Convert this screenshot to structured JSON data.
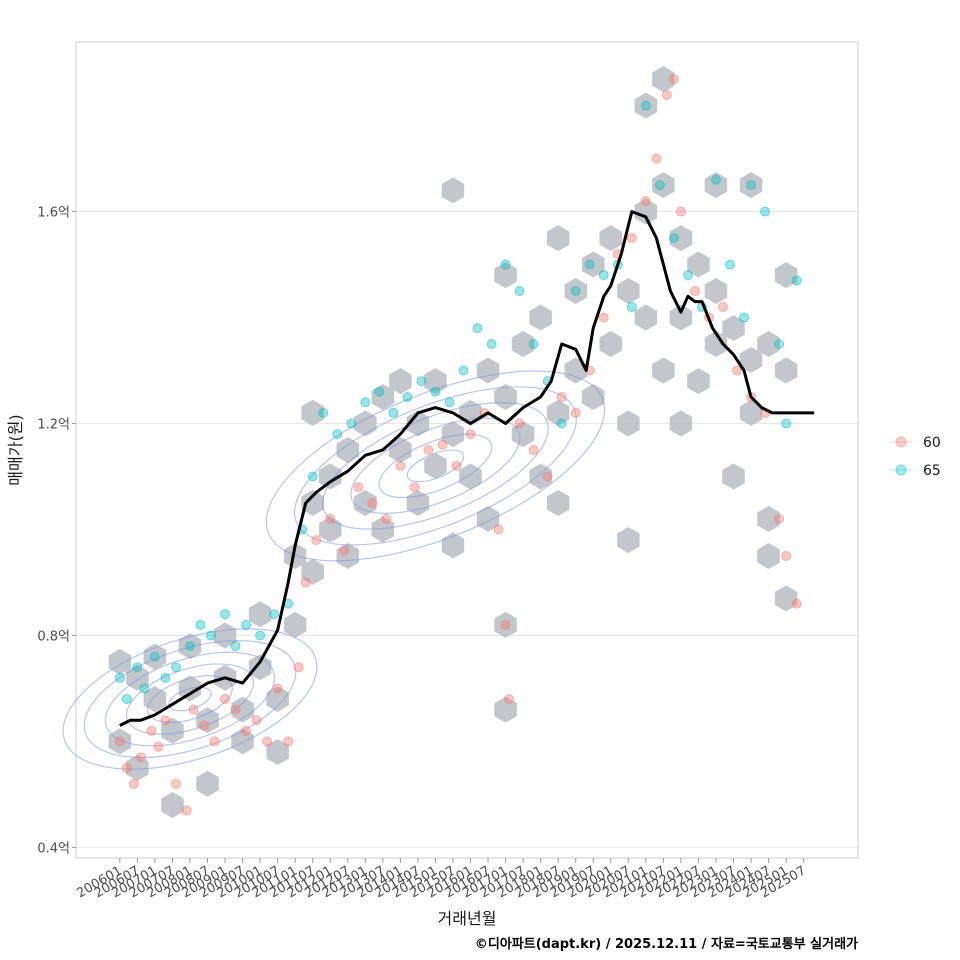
{
  "chart_data": {
    "type": "scatter",
    "title": "",
    "xlabel": "거래년월",
    "ylabel": "매매가(원)",
    "caption": "©디아파트(dapt.kr) / 2025.12.11 / 자료=국토교통부 실거래가",
    "x_start": "2006-01",
    "x_end": "2025-12",
    "x_ticks": [
      "200601",
      "200607",
      "200701",
      "200707",
      "200801",
      "200807",
      "200901",
      "200907",
      "201001",
      "201007",
      "201101",
      "201107",
      "201201",
      "201207",
      "201301",
      "201307",
      "201401",
      "201407",
      "201501",
      "201507",
      "201601",
      "201607",
      "201701",
      "201707",
      "201801",
      "201807",
      "201901",
      "201907",
      "202001",
      "202007",
      "202101",
      "202107",
      "202201",
      "202207",
      "202301",
      "202307",
      "202401",
      "202407",
      "202501",
      "202507"
    ],
    "ylim": [
      0.38,
      1.92
    ],
    "y_ticks": [
      0.4,
      0.8,
      1.2,
      1.6
    ],
    "y_tick_labels": [
      "0.4억",
      "0.8억",
      "1.2억",
      "1.6억"
    ],
    "y_unit": "억",
    "grid": true,
    "legend": {
      "position": "right",
      "entries": [
        {
          "label": "60",
          "color": "#F8766D"
        },
        {
          "label": "65",
          "color": "#00BFC4"
        }
      ]
    },
    "colors": {
      "hex": "#b8bdc2",
      "trend": "#000000",
      "contour": "#7b93e8",
      "point_60": "#F8766D",
      "point_65": "#00BFC4"
    },
    "trend_line": {
      "name": "moving average",
      "x": [
        2006.0,
        2006.3,
        2006.6,
        2007.0,
        2007.5,
        2008.0,
        2008.5,
        2009.0,
        2009.5,
        2010.0,
        2010.5,
        2010.8,
        2011.0,
        2011.3,
        2011.6,
        2012.0,
        2012.5,
        2013.0,
        2013.5,
        2014.0,
        2014.5,
        2015.0,
        2015.5,
        2016.0,
        2016.5,
        2017.0,
        2017.5,
        2018.0,
        2018.3,
        2018.6,
        2019.0,
        2019.3,
        2019.5,
        2019.8,
        2020.0,
        2020.3,
        2020.6,
        2021.0,
        2021.3,
        2021.5,
        2021.7,
        2022.0,
        2022.2,
        2022.4,
        2022.6,
        2022.9,
        2023.2,
        2023.5,
        2023.8,
        2024.0,
        2024.3,
        2024.6,
        2024.8,
        2025.0,
        2025.3,
        2025.5,
        2025.8
      ],
      "y": [
        0.63,
        0.64,
        0.64,
        0.65,
        0.67,
        0.69,
        0.71,
        0.72,
        0.71,
        0.75,
        0.81,
        0.9,
        0.97,
        1.05,
        1.07,
        1.09,
        1.11,
        1.14,
        1.15,
        1.18,
        1.22,
        1.23,
        1.22,
        1.2,
        1.22,
        1.2,
        1.23,
        1.25,
        1.28,
        1.35,
        1.34,
        1.3,
        1.38,
        1.44,
        1.46,
        1.52,
        1.6,
        1.59,
        1.55,
        1.5,
        1.45,
        1.41,
        1.44,
        1.43,
        1.43,
        1.38,
        1.35,
        1.33,
        1.3,
        1.25,
        1.23,
        1.22,
        1.22,
        1.22,
        1.22,
        1.22,
        1.22
      ]
    },
    "hex_bins": [
      [
        2006.0,
        0.75
      ],
      [
        2006.0,
        0.6
      ],
      [
        2006.5,
        0.72
      ],
      [
        2006.5,
        0.55
      ],
      [
        2007.0,
        0.68
      ],
      [
        2007.0,
        0.76
      ],
      [
        2007.5,
        0.62
      ],
      [
        2007.5,
        0.48
      ],
      [
        2008.0,
        0.7
      ],
      [
        2008.0,
        0.78
      ],
      [
        2008.5,
        0.64
      ],
      [
        2008.5,
        0.52
      ],
      [
        2009.0,
        0.72
      ],
      [
        2009.0,
        0.8
      ],
      [
        2009.5,
        0.66
      ],
      [
        2009.5,
        0.6
      ],
      [
        2010.0,
        0.74
      ],
      [
        2010.0,
        0.84
      ],
      [
        2010.5,
        0.68
      ],
      [
        2010.5,
        0.58
      ],
      [
        2011.0,
        0.82
      ],
      [
        2011.0,
        0.95
      ],
      [
        2011.5,
        1.05
      ],
      [
        2011.5,
        1.22
      ],
      [
        2011.5,
        0.92
      ],
      [
        2012.0,
        1.1
      ],
      [
        2012.0,
        1.0
      ],
      [
        2012.5,
        1.15
      ],
      [
        2012.5,
        0.95
      ],
      [
        2013.0,
        1.2
      ],
      [
        2013.0,
        1.05
      ],
      [
        2013.5,
        1.25
      ],
      [
        2013.5,
        1.0
      ],
      [
        2014.0,
        1.15
      ],
      [
        2014.0,
        1.28
      ],
      [
        2014.5,
        1.05
      ],
      [
        2014.5,
        1.2
      ],
      [
        2015.0,
        1.12
      ],
      [
        2015.0,
        1.28
      ],
      [
        2015.5,
        0.97
      ],
      [
        2015.5,
        1.18
      ],
      [
        2015.5,
        1.64
      ],
      [
        2016.0,
        1.1
      ],
      [
        2016.0,
        1.22
      ],
      [
        2016.5,
        1.3
      ],
      [
        2016.5,
        1.02
      ],
      [
        2017.0,
        1.25
      ],
      [
        2017.0,
        1.48
      ],
      [
        2017.0,
        0.82
      ],
      [
        2017.0,
        0.66
      ],
      [
        2017.5,
        1.18
      ],
      [
        2017.5,
        1.35
      ],
      [
        2018.0,
        1.1
      ],
      [
        2018.0,
        1.4
      ],
      [
        2018.5,
        1.05
      ],
      [
        2018.5,
        1.22
      ],
      [
        2018.5,
        1.55
      ],
      [
        2019.0,
        1.3
      ],
      [
        2019.0,
        1.45
      ],
      [
        2019.5,
        1.25
      ],
      [
        2019.5,
        1.5
      ],
      [
        2020.0,
        1.35
      ],
      [
        2020.0,
        1.55
      ],
      [
        2020.5,
        1.2
      ],
      [
        2020.5,
        1.45
      ],
      [
        2020.5,
        0.98
      ],
      [
        2021.0,
        1.4
      ],
      [
        2021.0,
        1.6
      ],
      [
        2021.0,
        1.8
      ],
      [
        2021.5,
        1.3
      ],
      [
        2021.5,
        1.65
      ],
      [
        2021.5,
        1.85
      ],
      [
        2022.0,
        1.4
      ],
      [
        2022.0,
        1.55
      ],
      [
        2022.0,
        1.2
      ],
      [
        2022.5,
        1.5
      ],
      [
        2022.5,
        1.28
      ],
      [
        2023.0,
        1.45
      ],
      [
        2023.0,
        1.65
      ],
      [
        2023.0,
        1.35
      ],
      [
        2023.5,
        1.38
      ],
      [
        2023.5,
        1.1
      ],
      [
        2024.0,
        1.32
      ],
      [
        2024.0,
        1.65
      ],
      [
        2024.0,
        1.22
      ],
      [
        2024.5,
        1.35
      ],
      [
        2024.5,
        1.02
      ],
      [
        2024.5,
        0.95
      ],
      [
        2025.0,
        1.3
      ],
      [
        2025.0,
        1.48
      ],
      [
        2025.0,
        0.87
      ]
    ],
    "contour_centers": [
      {
        "x": 2008.0,
        "y": 0.68
      },
      {
        "x": 2015.0,
        "y": 1.12
      }
    ],
    "scatter_series": [
      {
        "name": "60",
        "points": [
          [
            2006.0,
            0.6
          ],
          [
            2006.2,
            0.55
          ],
          [
            2006.4,
            0.52
          ],
          [
            2006.6,
            0.57
          ],
          [
            2006.9,
            0.62
          ],
          [
            2007.1,
            0.59
          ],
          [
            2007.3,
            0.64
          ],
          [
            2007.6,
            0.52
          ],
          [
            2007.9,
            0.47
          ],
          [
            2008.1,
            0.66
          ],
          [
            2008.4,
            0.63
          ],
          [
            2008.7,
            0.6
          ],
          [
            2009.0,
            0.68
          ],
          [
            2009.3,
            0.66
          ],
          [
            2009.6,
            0.62
          ],
          [
            2009.9,
            0.64
          ],
          [
            2010.2,
            0.6
          ],
          [
            2010.5,
            0.7
          ],
          [
            2010.8,
            0.6
          ],
          [
            2011.1,
            0.74
          ],
          [
            2011.3,
            0.9
          ],
          [
            2011.6,
            0.98
          ],
          [
            2012.0,
            1.02
          ],
          [
            2012.4,
            0.96
          ],
          [
            2012.8,
            1.08
          ],
          [
            2013.2,
            1.05
          ],
          [
            2013.6,
            1.02
          ],
          [
            2014.0,
            1.12
          ],
          [
            2014.4,
            1.08
          ],
          [
            2014.8,
            1.15
          ],
          [
            2015.2,
            1.16
          ],
          [
            2015.6,
            1.12
          ],
          [
            2016.0,
            1.18
          ],
          [
            2016.4,
            1.22
          ],
          [
            2016.8,
            1.0
          ],
          [
            2017.0,
            0.82
          ],
          [
            2017.1,
            0.68
          ],
          [
            2017.4,
            1.2
          ],
          [
            2017.8,
            1.15
          ],
          [
            2018.2,
            1.1
          ],
          [
            2018.6,
            1.25
          ],
          [
            2019.0,
            1.22
          ],
          [
            2019.4,
            1.3
          ],
          [
            2019.8,
            1.4
          ],
          [
            2020.2,
            1.52
          ],
          [
            2020.6,
            1.55
          ],
          [
            2021.0,
            1.62
          ],
          [
            2021.3,
            1.7
          ],
          [
            2021.6,
            1.82
          ],
          [
            2021.8,
            1.85
          ],
          [
            2022.0,
            1.6
          ],
          [
            2022.4,
            1.45
          ],
          [
            2022.8,
            1.4
          ],
          [
            2023.2,
            1.42
          ],
          [
            2023.6,
            1.3
          ],
          [
            2024.0,
            1.25
          ],
          [
            2024.4,
            1.22
          ],
          [
            2024.8,
            1.02
          ],
          [
            2025.0,
            0.95
          ],
          [
            2025.3,
            0.86
          ]
        ]
      },
      {
        "name": "65",
        "points": [
          [
            2006.0,
            0.72
          ],
          [
            2006.2,
            0.68
          ],
          [
            2006.5,
            0.74
          ],
          [
            2006.7,
            0.7
          ],
          [
            2007.0,
            0.76
          ],
          [
            2007.3,
            0.72
          ],
          [
            2007.6,
            0.74
          ],
          [
            2008.0,
            0.78
          ],
          [
            2008.3,
            0.82
          ],
          [
            2008.6,
            0.8
          ],
          [
            2009.0,
            0.84
          ],
          [
            2009.3,
            0.78
          ],
          [
            2009.6,
            0.82
          ],
          [
            2010.0,
            0.8
          ],
          [
            2010.4,
            0.84
          ],
          [
            2010.8,
            0.86
          ],
          [
            2011.2,
            1.0
          ],
          [
            2011.5,
            1.1
          ],
          [
            2011.8,
            1.22
          ],
          [
            2012.2,
            1.18
          ],
          [
            2012.6,
            1.2
          ],
          [
            2013.0,
            1.24
          ],
          [
            2013.4,
            1.26
          ],
          [
            2013.8,
            1.22
          ],
          [
            2014.2,
            1.25
          ],
          [
            2014.6,
            1.28
          ],
          [
            2015.0,
            1.26
          ],
          [
            2015.4,
            1.24
          ],
          [
            2015.8,
            1.3
          ],
          [
            2016.2,
            1.38
          ],
          [
            2016.6,
            1.35
          ],
          [
            2017.0,
            1.5
          ],
          [
            2017.4,
            1.45
          ],
          [
            2017.8,
            1.35
          ],
          [
            2018.2,
            1.28
          ],
          [
            2018.6,
            1.2
          ],
          [
            2019.0,
            1.45
          ],
          [
            2019.4,
            1.5
          ],
          [
            2019.8,
            1.48
          ],
          [
            2020.2,
            1.5
          ],
          [
            2020.6,
            1.42
          ],
          [
            2021.0,
            1.8
          ],
          [
            2021.4,
            1.65
          ],
          [
            2021.8,
            1.55
          ],
          [
            2022.2,
            1.48
          ],
          [
            2022.6,
            1.42
          ],
          [
            2023.0,
            1.66
          ],
          [
            2023.4,
            1.5
          ],
          [
            2023.8,
            1.4
          ],
          [
            2024.0,
            1.65
          ],
          [
            2024.4,
            1.6
          ],
          [
            2024.8,
            1.35
          ],
          [
            2025.0,
            1.2
          ],
          [
            2025.3,
            1.47
          ]
        ]
      }
    ]
  }
}
